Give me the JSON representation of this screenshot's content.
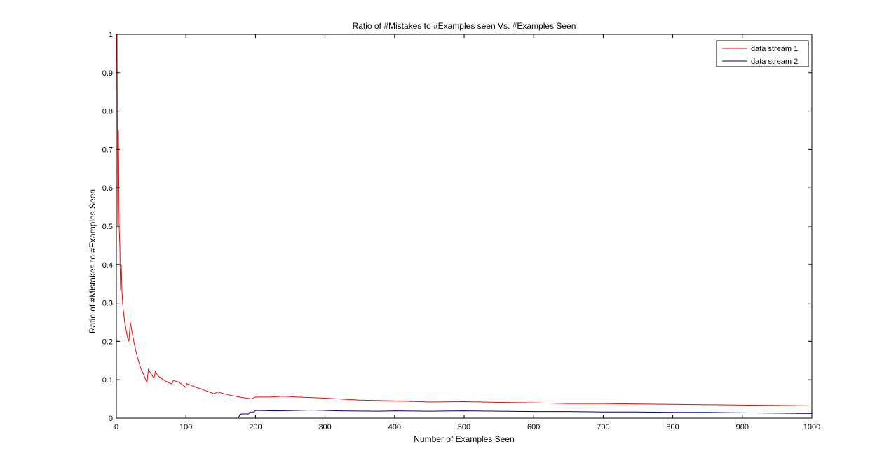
{
  "chart_data": {
    "type": "line",
    "title": "Ratio of #Mistakes to #Examples seen Vs. #Examples Seen",
    "xlabel": "Number of Examples Seen",
    "ylabel": "Ratio of #Mistakes to #Examples Seen",
    "xlim": [
      0,
      1000
    ],
    "ylim": [
      0,
      1
    ],
    "xticks": [
      "0",
      "100",
      "200",
      "300",
      "400",
      "500",
      "600",
      "700",
      "800",
      "900",
      "1000"
    ],
    "yticks": [
      "0",
      "0.1",
      "0.2",
      "0.3",
      "0.4",
      "0.5",
      "0.6",
      "0.7",
      "0.8",
      "0.9",
      "1"
    ],
    "grid": false,
    "legend_position": "top-right",
    "series": [
      {
        "name": "data stream 1",
        "color": "#ff0000",
        "x": [
          1,
          2,
          3,
          4,
          5,
          6,
          7,
          8,
          9,
          10,
          12,
          14,
          16,
          18,
          20,
          25,
          30,
          35,
          40,
          44,
          46,
          50,
          54,
          56,
          60,
          70,
          80,
          82,
          90,
          100,
          101,
          120,
          140,
          146,
          160,
          180,
          195,
          200,
          220,
          240,
          260,
          300,
          350,
          400,
          450,
          500,
          550,
          600,
          650,
          700,
          750,
          800,
          850,
          900,
          950,
          1000
        ],
        "y": [
          1.0,
          0.5,
          0.75,
          0.5,
          0.45,
          0.333,
          0.4,
          0.333,
          0.3,
          0.28,
          0.25,
          0.23,
          0.21,
          0.2,
          0.25,
          0.2,
          0.16,
          0.13,
          0.11,
          0.092,
          0.127,
          0.115,
          0.104,
          0.122,
          0.11,
          0.097,
          0.089,
          0.098,
          0.094,
          0.08,
          0.09,
          0.077,
          0.064,
          0.068,
          0.061,
          0.054,
          0.05,
          0.055,
          0.055,
          0.057,
          0.055,
          0.052,
          0.047,
          0.045,
          0.042,
          0.043,
          0.041,
          0.04,
          0.038,
          0.038,
          0.037,
          0.036,
          0.035,
          0.034,
          0.033,
          0.032
        ]
      },
      {
        "name": "data stream 2",
        "color": "#000080",
        "x": [
          0,
          175,
          178,
          181,
          190,
          192,
          198,
          200,
          230,
          260,
          280,
          300,
          320,
          380,
          400,
          450,
          500,
          550,
          600,
          650,
          700,
          750,
          800,
          850,
          900,
          950,
          1000
        ],
        "y": [
          0,
          0,
          0.01,
          0.011,
          0.011,
          0.016,
          0.016,
          0.02,
          0.019,
          0.02,
          0.021,
          0.02,
          0.019,
          0.018,
          0.019,
          0.018,
          0.019,
          0.018,
          0.017,
          0.017,
          0.016,
          0.016,
          0.015,
          0.015,
          0.014,
          0.013,
          0.012
        ]
      }
    ]
  }
}
